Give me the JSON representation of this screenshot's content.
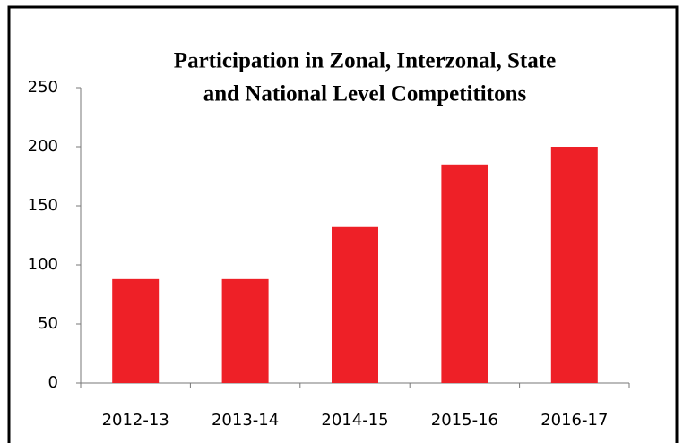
{
  "chart_data": {
    "type": "bar",
    "title": [
      "Participation in Zonal, Interzonal, State",
      "and National Level Competititons"
    ],
    "categories": [
      "2012-13",
      "2013-14",
      "2014-15",
      "2015-16",
      "2016-17"
    ],
    "values": [
      88,
      88,
      132,
      185,
      200
    ],
    "color": "#ee2027",
    "ylim": [
      0,
      250
    ],
    "yticks": [
      0,
      50,
      100,
      150,
      200,
      250
    ]
  }
}
